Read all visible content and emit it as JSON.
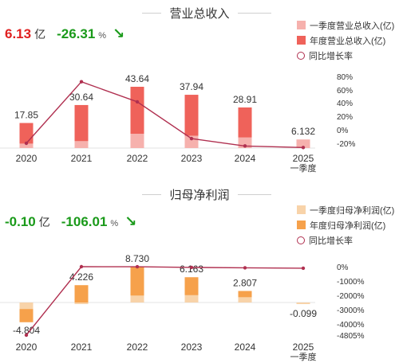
{
  "panels": {
    "revenue": {
      "title": "营业总收入",
      "kpi": {
        "value": "6.13",
        "unit": "亿",
        "change": "-26.31",
        "change_unit": "%"
      },
      "legend": [
        "一季度营业总收入(亿)",
        "年度营业总收入(亿)",
        "同比增长率"
      ]
    },
    "profit": {
      "title": "归母净利润",
      "kpi": {
        "value": "-0.10",
        "unit": "亿",
        "change": "-106.01",
        "change_unit": "%"
      },
      "legend": [
        "一季度归母净利润(亿)",
        "年度归母净利润(亿)",
        "同比增长率"
      ]
    }
  },
  "colors": {
    "revenue_annual": "#ef625a",
    "revenue_q1": "#f6b1ad",
    "profit_annual": "#f6a14b",
    "profit_q1": "#f8d3a9",
    "growth_line": "#b03050",
    "kpi_value": "#e02020",
    "kpi_positive": "#1a9a1a"
  },
  "chart_data": [
    {
      "type": "bar",
      "title": "营业总收入",
      "categories": [
        "2020",
        "2021",
        "2022",
        "2023",
        "2024",
        "2025\n一季度"
      ],
      "series": [
        {
          "name": "一季度营业总收入(亿)",
          "values": [
            3.2,
            5.0,
            10.2,
            8.8,
            7.6,
            6.132
          ]
        },
        {
          "name": "年度营业总收入(亿)",
          "values": [
            17.85,
            30.64,
            43.64,
            37.94,
            28.91,
            null
          ]
        },
        {
          "name": "同比增长率",
          "values": [
            -20,
            72,
            42,
            -13,
            -24,
            -26.31
          ],
          "axis": "right"
        }
      ],
      "data_labels": [
        "17.85",
        "30.64",
        "43.64",
        "37.94",
        "28.91",
        "6.132"
      ],
      "y2_ticks": [
        "80%",
        "60%",
        "40%",
        "20%",
        "0%",
        "-20%"
      ],
      "y2lim": [
        -20,
        80
      ],
      "ylim": [
        0,
        43.64
      ]
    },
    {
      "type": "bar",
      "title": "归母净利润",
      "categories": [
        "2020",
        "2021",
        "2022",
        "2023",
        "2024",
        "2025\n一季度"
      ],
      "series": [
        {
          "name": "一季度归母净利润(亿)",
          "values": [
            -1.6,
            -0.2,
            1.7,
            1.8,
            1.3,
            -0.099
          ]
        },
        {
          "name": "年度归母净利润(亿)",
          "values": [
            -4.804,
            4.226,
            8.73,
            6.163,
            2.807,
            null
          ]
        },
        {
          "name": "同比增长率",
          "values": [
            -4805,
            0,
            -5,
            -50,
            -80,
            -106.01
          ],
          "axis": "right"
        }
      ],
      "data_labels": [
        "-4.804",
        "4.226",
        "8.730",
        "6.163",
        "2.807",
        "-0.099"
      ],
      "y2_ticks": [
        "0%",
        "-1000%",
        "-2000%",
        "-3000%",
        "-4000%",
        "-4805%"
      ],
      "y2lim": [
        -4805,
        0
      ],
      "ylim": [
        -4.804,
        8.73
      ]
    }
  ]
}
